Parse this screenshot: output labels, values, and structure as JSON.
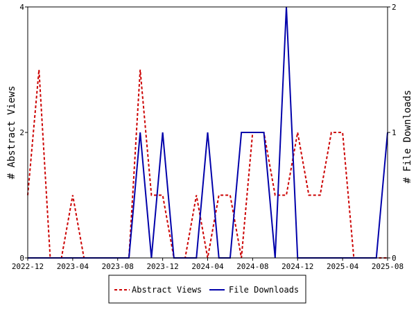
{
  "chart_data": {
    "type": "line",
    "x": [
      "2022-12",
      "2023-01",
      "2023-02",
      "2023-03",
      "2023-04",
      "2023-05",
      "2023-06",
      "2023-07",
      "2023-08",
      "2023-09",
      "2023-10",
      "2023-11",
      "2023-12",
      "2024-01",
      "2024-02",
      "2024-03",
      "2024-04",
      "2024-05",
      "2024-06",
      "2024-07",
      "2024-08",
      "2024-09",
      "2024-10",
      "2024-11",
      "2024-12",
      "2025-01",
      "2025-02",
      "2025-03",
      "2025-04",
      "2025-05",
      "2025-06",
      "2025-07",
      "2025-08"
    ],
    "x_ticks": [
      "2022-12",
      "2023-04",
      "2023-08",
      "2023-12",
      "2024-04",
      "2024-08",
      "2024-12",
      "2025-04",
      "2025-08"
    ],
    "y_left": {
      "label": "# Abstract Views",
      "ticks": [
        "0",
        "2",
        "4"
      ],
      "range": [
        0,
        4
      ]
    },
    "y_right": {
      "label": "# File Downloads",
      "ticks": [
        "0",
        "1",
        "2"
      ],
      "range": [
        0,
        2
      ]
    },
    "series": [
      {
        "name": "Abstract Views",
        "axis": "left",
        "color": "#cc0000",
        "style": "dashed",
        "values": [
          1,
          3,
          0,
          0,
          1,
          0,
          0,
          0,
          0,
          0,
          3,
          1,
          1,
          0,
          0,
          1,
          0,
          1,
          1,
          0,
          2,
          2,
          1,
          1,
          2,
          1,
          1,
          2,
          2,
          0,
          0,
          0,
          0
        ]
      },
      {
        "name": "File Downloads",
        "axis": "right",
        "color": "#0000aa",
        "style": "solid",
        "values": [
          0,
          0,
          0,
          0,
          0,
          0,
          0,
          0,
          0,
          0,
          1,
          0,
          1,
          0,
          0,
          0,
          1,
          0,
          0,
          1,
          1,
          1,
          0,
          2,
          0,
          0,
          0,
          0,
          0,
          0,
          0,
          0,
          1
        ]
      }
    ],
    "legend": {
      "placement": "bottom",
      "entries": [
        "Abstract Views",
        "File Downloads"
      ]
    },
    "grid": false
  }
}
